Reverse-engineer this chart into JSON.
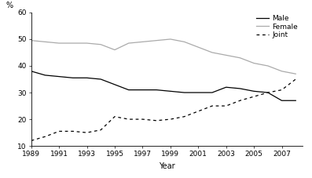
{
  "years": [
    1989,
    1990,
    1991,
    1992,
    1993,
    1994,
    1995,
    1996,
    1997,
    1998,
    1999,
    2000,
    2001,
    2002,
    2003,
    2004,
    2005,
    2006,
    2007,
    2008
  ],
  "male": [
    38,
    36.5,
    36,
    35.5,
    35.5,
    35,
    33,
    31,
    31,
    31,
    30.5,
    30,
    30,
    30,
    32,
    31.5,
    30.5,
    30,
    27,
    27
  ],
  "female": [
    49.5,
    49,
    48.5,
    48.5,
    48.5,
    48,
    46,
    48.5,
    49,
    49.5,
    50,
    49,
    47,
    45,
    44,
    43,
    41,
    40,
    38,
    37
  ],
  "joint": [
    12,
    13.5,
    15.5,
    15.5,
    15,
    16,
    21,
    20,
    20,
    19.5,
    20,
    21,
    23,
    25,
    25,
    27,
    28.5,
    30,
    31,
    35
  ],
  "male_color": "#000000",
  "female_color": "#aaaaaa",
  "joint_color": "#000000",
  "pct_label": "%",
  "xlabel": "Year",
  "ylim": [
    10,
    60
  ],
  "yticks": [
    10,
    20,
    30,
    40,
    50,
    60
  ],
  "xticks": [
    1989,
    1991,
    1993,
    1995,
    1997,
    1999,
    2001,
    2003,
    2005,
    2007
  ],
  "legend_labels": [
    "Male",
    "Female",
    "Joint"
  ]
}
